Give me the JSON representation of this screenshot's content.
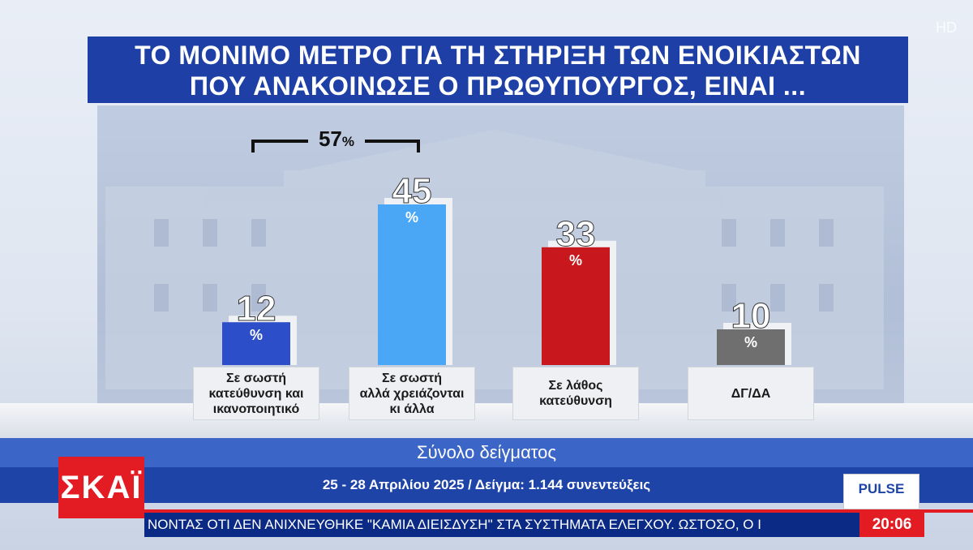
{
  "title": {
    "line1": "ΤΟ ΜΟΝΙΜΟ ΜΕΤΡΟ ΓΙΑ ΤΗ ΣΤΗΡΙΞΗ ΤΩΝ ΕΝΟΙΚΙΑΣΤΩΝ",
    "line2": "ΠΟΥ ΑΝΑΚΟΙΝΩΣΕ Ο ΠΡΩΘΥΠΟΥΡΓΟΣ, ΕΙΝΑΙ ..."
  },
  "hd_badge": "HD",
  "bracket": {
    "value": "57",
    "unit": "%"
  },
  "chart_data": {
    "type": "bar",
    "categories": [
      "Σε σωστή κατεύθυνση και ικανοποιητικό",
      "Σε σωστή αλλά χρειάζονται κι άλλα",
      "Σε λάθος κατεύθυνση",
      "ΔΓ/ΔΑ"
    ],
    "category_lines": [
      [
        "Σε σωστή",
        "κατεύθυνση και",
        "ικανοποιητικό"
      ],
      [
        "Σε σωστή",
        "αλλά χρειάζονται",
        "κι άλλα"
      ],
      [
        "Σε λάθος",
        "κατεύθυνση"
      ],
      [
        "ΔΓ/ΔΑ"
      ]
    ],
    "values": [
      12,
      45,
      33,
      10
    ],
    "unit": "%",
    "colors": [
      "#2c4fc9",
      "#4aa7f5",
      "#c8181e",
      "#6f6f6f"
    ],
    "ylim": [
      0,
      45
    ]
  },
  "sample_label": "Σύνολο δείγματος",
  "date_line": "25 - 28 Απριλίου 2025 / Δείγμα: 1.144 συνεντεύξεις",
  "logo": "ΣΚΑΪ",
  "pulse_logo": "PULSE",
  "ticker": "ΝΟΝΤΑΣ ΟΤΙ ΔΕΝ ΑΝΙΧΝΕΥΘΗΚΕ \"ΚΑΜΙΑ ΔΙΕΙΣΔΥΣΗ\" ΣΤΑ ΣΥΣΤΗΜΑΤΑ ΕΛΕΓΧΟΥ. ΩΣΤΟΣΟ, Ο Ι",
  "clock": "20:06"
}
